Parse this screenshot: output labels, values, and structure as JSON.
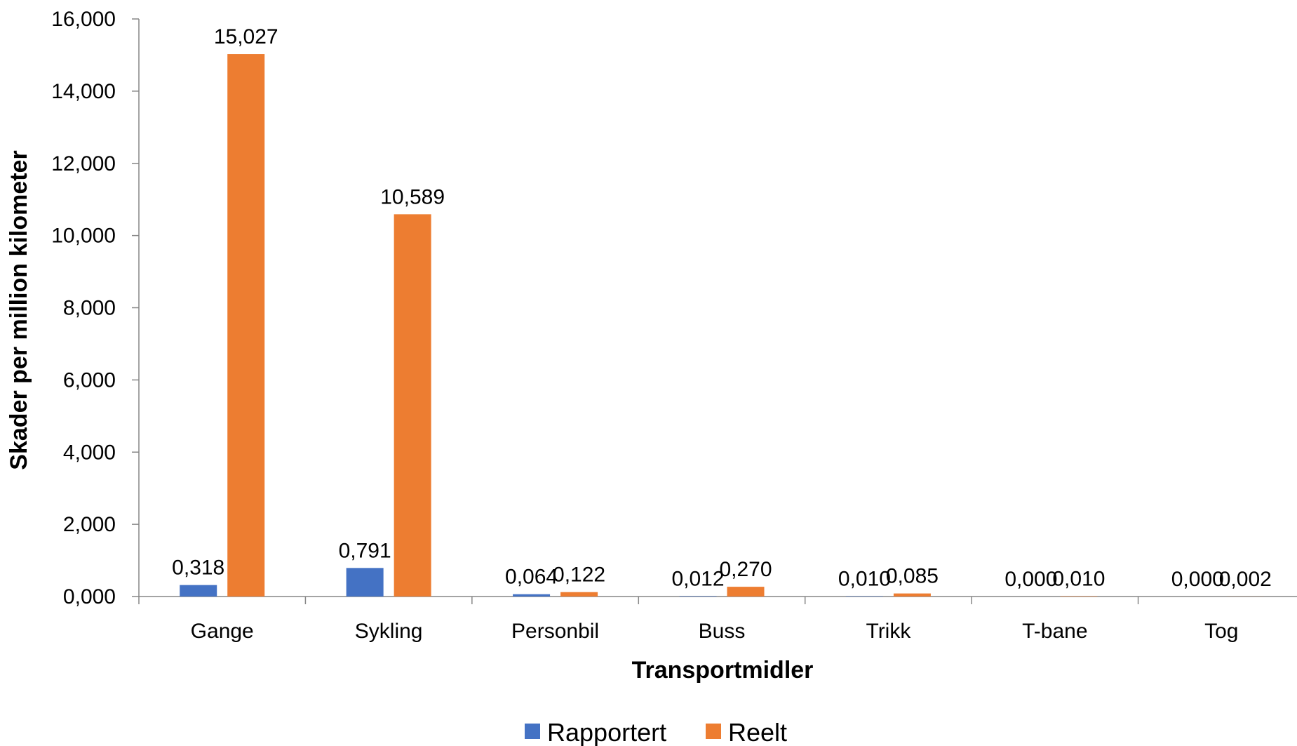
{
  "chart_data": {
    "type": "bar",
    "xlabel": "Transportmidler",
    "ylabel": "Skader per million kilometer",
    "ylim": [
      0,
      16
    ],
    "y_ticks": [
      0,
      2,
      4,
      6,
      8,
      10,
      12,
      14,
      16
    ],
    "y_tick_labels": [
      "0,000",
      "2,000",
      "4,000",
      "6,000",
      "8,000",
      "10,000",
      "12,000",
      "14,000",
      "16,000"
    ],
    "categories": [
      "Gange",
      "Sykling",
      "Personbil",
      "Buss",
      "Trikk",
      "T-bane",
      "Tog"
    ],
    "series": [
      {
        "name": "Rapportert",
        "color": "#4472c4",
        "values": [
          0.318,
          0.791,
          0.064,
          0.012,
          0.01,
          0.0,
          0.0
        ],
        "labels": [
          "0,318",
          "0,791",
          "0,064",
          "0,012",
          "0,010",
          "0,000",
          "0,000"
        ]
      },
      {
        "name": "Reelt",
        "color": "#ed7d31",
        "values": [
          15.027,
          10.589,
          0.122,
          0.27,
          0.085,
          0.01,
          0.002
        ],
        "labels": [
          "15,027",
          "10,589",
          "0,122",
          "0,270",
          "0,085",
          "0,010",
          "0,002"
        ]
      }
    ],
    "grid": false,
    "legend_position": "bottom"
  }
}
